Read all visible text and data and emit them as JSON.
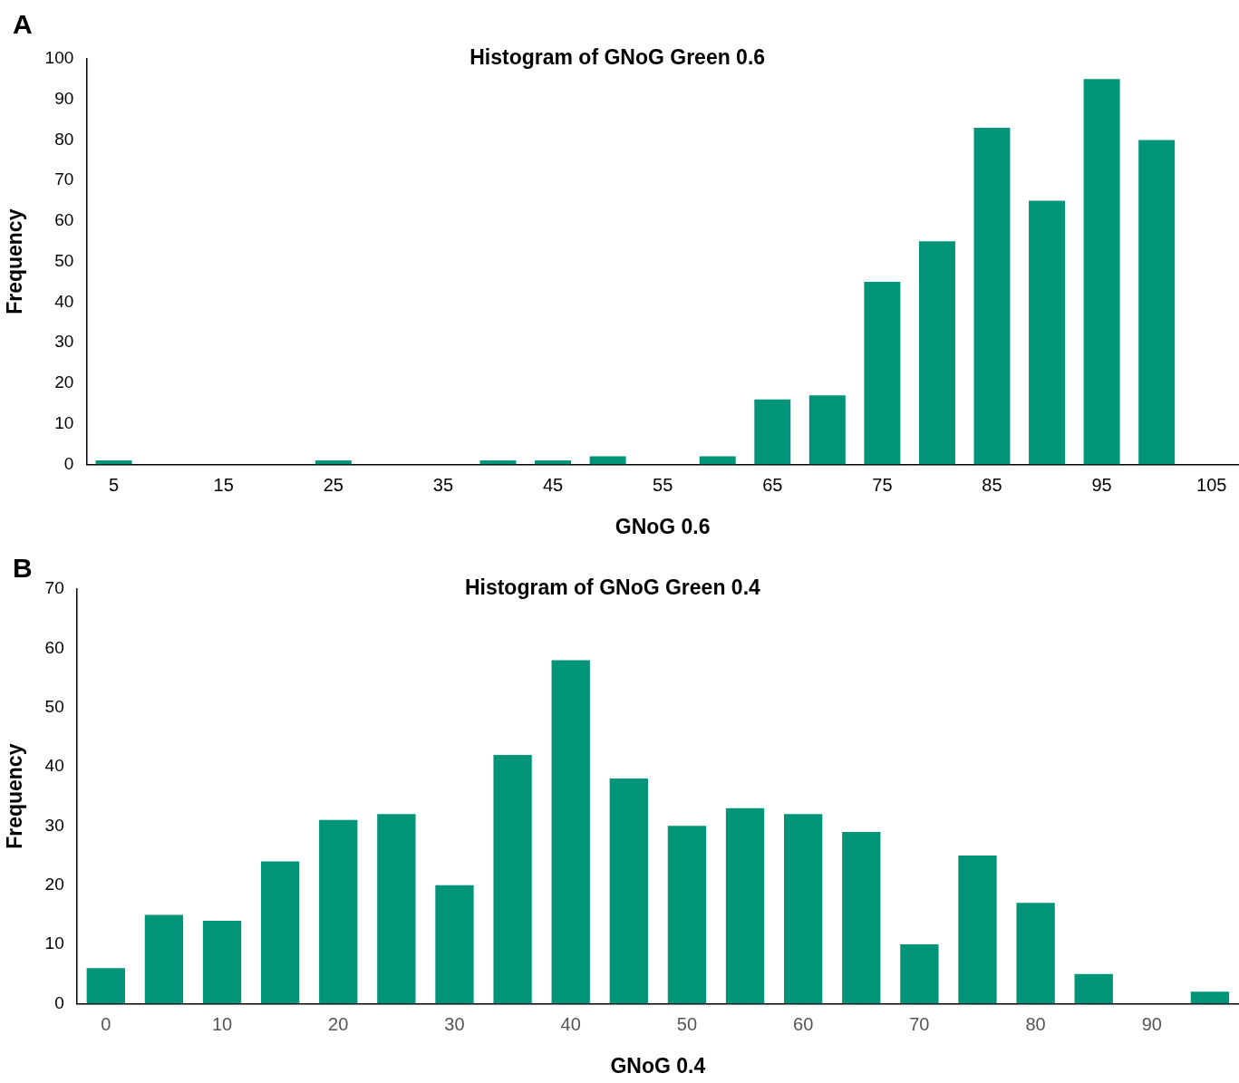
{
  "chart_data": [
    {
      "type": "bar",
      "title": "Histogram of GNoG Green 0.6",
      "xlabel": "GNoG 0.6",
      "ylabel": "Frequency",
      "annotations": [
        "A"
      ],
      "categories": [
        "5",
        null,
        "15",
        null,
        "25",
        null,
        "35",
        null,
        "45",
        null,
        "55",
        null,
        "65",
        null,
        "75",
        null,
        "85",
        null,
        "95",
        null,
        "105"
      ],
      "values": [
        1,
        0,
        0,
        0,
        1,
        0,
        0,
        1,
        1,
        2,
        0,
        2,
        16,
        17,
        45,
        55,
        83,
        65,
        95,
        80,
        0
      ],
      "color": "#009479",
      "ylim": [
        0,
        100
      ],
      "yticks": [
        0,
        10,
        20,
        30,
        40,
        50,
        60,
        70,
        80,
        90,
        100
      ],
      "grid": false
    },
    {
      "type": "bar",
      "title": "Histogram of GNoG Green 0.4",
      "xlabel": "GNoG 0.4",
      "ylabel": "Frequency",
      "annotations": [
        "B"
      ],
      "categories": [
        "0",
        null,
        "10",
        null,
        "20",
        null,
        "30",
        null,
        "40",
        null,
        "50",
        null,
        "60",
        null,
        "70",
        null,
        "80",
        null,
        "90",
        null
      ],
      "values": [
        6,
        15,
        14,
        24,
        31,
        32,
        20,
        42,
        58,
        38,
        30,
        33,
        32,
        29,
        10,
        25,
        17,
        5,
        0,
        2
      ],
      "color": "#009479",
      "ylim": [
        0,
        70
      ],
      "yticks": [
        0,
        10,
        20,
        30,
        40,
        50,
        60,
        70
      ],
      "grid": false
    }
  ]
}
